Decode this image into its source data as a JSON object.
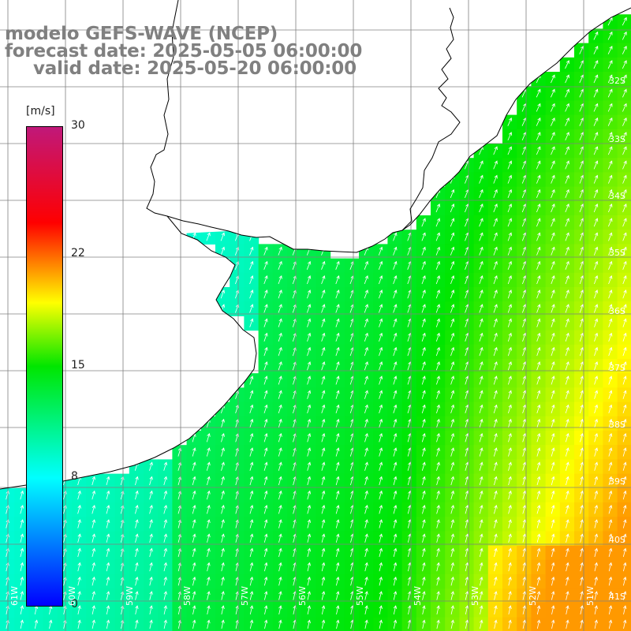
{
  "title": {
    "line1": "modelo GEFS-WAVE (NCEP)",
    "line2": "forecast date: 2025-05-05 06:00:00",
    "line3": "valid date: 2025-05-20 06:00:00"
  },
  "colorbar": {
    "unit": "[m/s]",
    "ticks": [
      "30",
      "22",
      "15",
      "8",
      "0"
    ],
    "tick_values": [
      30,
      22,
      15,
      8,
      0
    ],
    "range": [
      0,
      30
    ],
    "colors": [
      "#0000ff",
      "#00ffff",
      "#00e600",
      "#ffff00",
      "#ff0000",
      "#c0187a"
    ]
  },
  "map": {
    "lat_labels": [
      "32S",
      "33S",
      "34S",
      "35S",
      "36S",
      "37S",
      "38S",
      "39S",
      "40S",
      "41S"
    ],
    "lon_labels": [
      "61W",
      "60W",
      "59W",
      "58W",
      "57W",
      "56W",
      "55W",
      "54W",
      "53W",
      "52W",
      "51W"
    ],
    "land_color": "#ffffff",
    "grid_color": "#808080",
    "coast_color": "#000000",
    "arrow_color": "#ffffff",
    "arrow_direction": "toward NE"
  }
}
